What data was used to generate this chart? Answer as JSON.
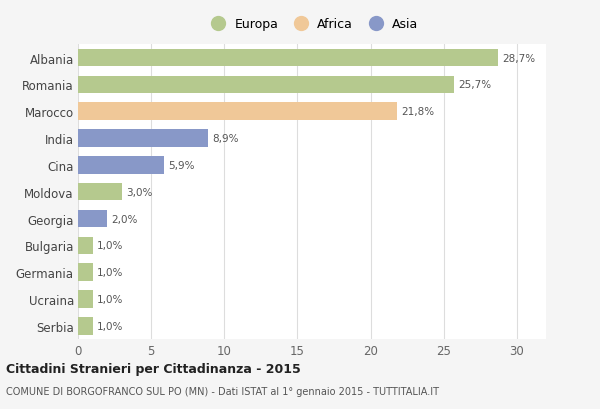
{
  "countries": [
    "Albania",
    "Romania",
    "Marocco",
    "India",
    "Cina",
    "Moldova",
    "Georgia",
    "Bulgaria",
    "Germania",
    "Ucraina",
    "Serbia"
  ],
  "values": [
    28.7,
    25.7,
    21.8,
    8.9,
    5.9,
    3.0,
    2.0,
    1.0,
    1.0,
    1.0,
    1.0
  ],
  "continents": [
    "Europa",
    "Europa",
    "Africa",
    "Asia",
    "Asia",
    "Europa",
    "Asia",
    "Europa",
    "Europa",
    "Europa",
    "Europa"
  ],
  "colors": {
    "Europa": "#b5c98e",
    "Africa": "#f0c898",
    "Asia": "#8898c8"
  },
  "labels": [
    "28,7%",
    "25,7%",
    "21,8%",
    "8,9%",
    "5,9%",
    "3,0%",
    "2,0%",
    "1,0%",
    "1,0%",
    "1,0%",
    "1,0%"
  ],
  "title1": "Cittadini Stranieri per Cittadinanza - 2015",
  "title2": "COMUNE DI BORGOFRANCO SUL PO (MN) - Dati ISTAT al 1° gennaio 2015 - TUTTITALIA.IT",
  "xlim": [
    0,
    32
  ],
  "xticks": [
    0,
    5,
    10,
    15,
    20,
    25,
    30
  ],
  "legend_labels": [
    "Europa",
    "Africa",
    "Asia"
  ],
  "legend_colors": [
    "#b5c98e",
    "#f0c898",
    "#8898c8"
  ],
  "bg_color": "#f5f5f5",
  "plot_bg_color": "#ffffff"
}
